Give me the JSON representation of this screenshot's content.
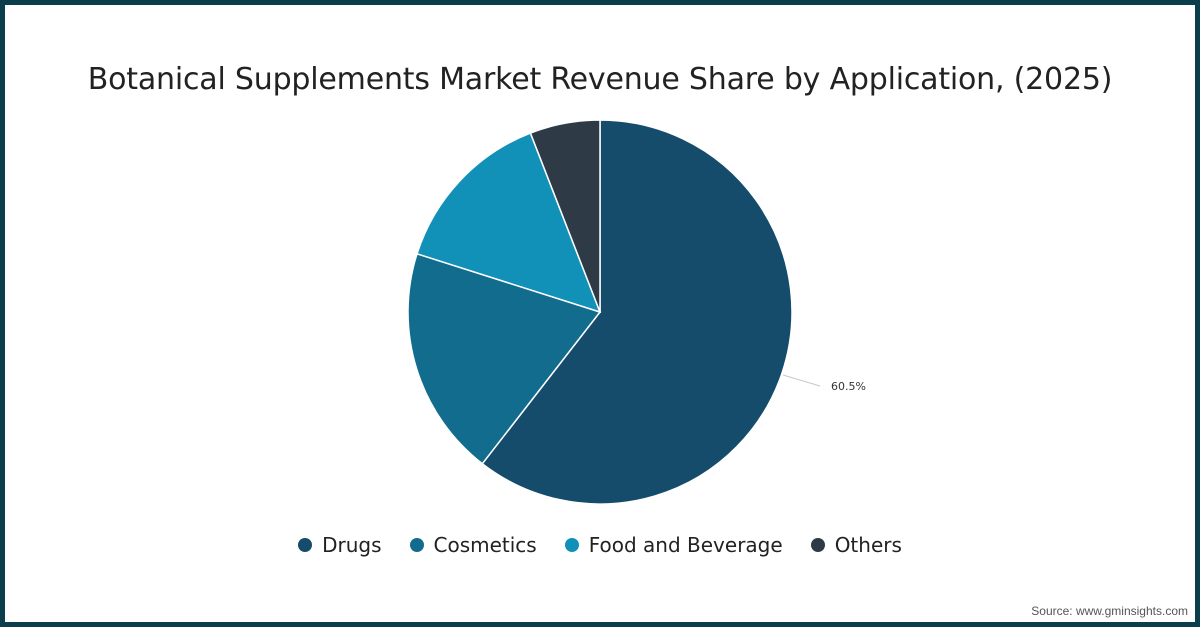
{
  "chart_data": {
    "type": "pie",
    "title": "Botanical Supplements Market Revenue Share by Application, (2025)",
    "categories": [
      "Drugs",
      "Cosmetics",
      "Food and Beverage",
      "Others"
    ],
    "values": [
      60.5,
      19.4,
      14.2,
      5.9
    ],
    "colors": [
      "#154b6b",
      "#126c8d",
      "#1190b8",
      "#2e3a45"
    ],
    "data_labels": [
      {
        "category": "Drugs",
        "text": "60.5%"
      }
    ],
    "legend_position": "bottom",
    "start_angle": 0,
    "direction": "clockwise"
  },
  "title": "Botanical Supplements Market Revenue Share by Application, (2025)",
  "legend": [
    {
      "label": "Drugs",
      "color": "#154b6b"
    },
    {
      "label": "Cosmetics",
      "color": "#126c8d"
    },
    {
      "label": "Food and Beverage",
      "color": "#1190b8"
    },
    {
      "label": "Others",
      "color": "#2e3a45"
    }
  ],
  "annotation": {
    "drugs_label": "60.5%"
  },
  "source": "Source: www.gminsights.com",
  "border_color": "#0b3d4b"
}
